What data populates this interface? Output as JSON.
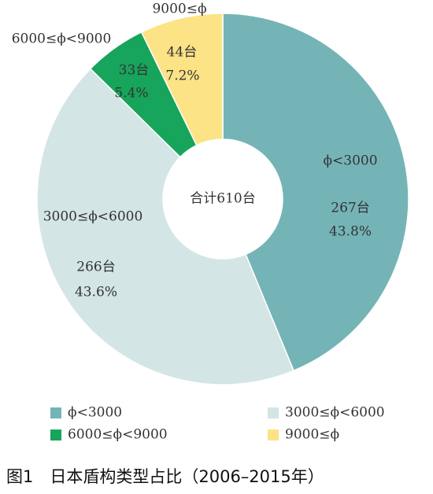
{
  "chart_data": {
    "type": "donut",
    "title": "图1　日本盾构类型占比（2006–2015年）",
    "center_label": "合计610台",
    "categories": [
      "ϕ<3000",
      "3000≤ϕ<6000",
      "6000≤ϕ<9000",
      "9000≤ϕ"
    ],
    "values": [
      267,
      266,
      33,
      44
    ],
    "value_labels": [
      "267台",
      "266台",
      "33台",
      "44台"
    ],
    "percents": [
      43.8,
      43.6,
      5.4,
      7.2
    ],
    "percent_labels": [
      "43.8%",
      "43.6%",
      "5.4%",
      "7.2%"
    ],
    "colors": [
      "#75b4b6",
      "#d3e5e4",
      "#17a45b",
      "#fbe386"
    ],
    "legend": "bottom"
  }
}
